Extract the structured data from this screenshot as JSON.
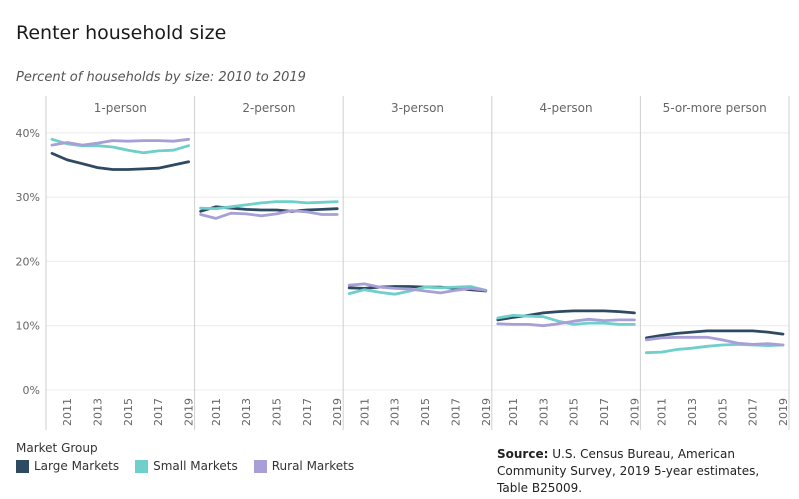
{
  "title": "Renter household size",
  "subtitle": "Percent of households by size: 2010 to 2019",
  "legend": {
    "title": "Market Group",
    "items": [
      {
        "label": "Large Markets",
        "color": "#2e4a62"
      },
      {
        "label": "Small Markets",
        "color": "#6fcfca"
      },
      {
        "label": "Rural Markets",
        "color": "#a89fd6"
      }
    ]
  },
  "source": {
    "label": "Source:",
    "text": "U.S. Census Bureau, American Community Survey, 2019 5-year estimates, Table B25009."
  },
  "chart_data": {
    "type": "line",
    "ylim": [
      0,
      42
    ],
    "y_ticks": [
      0,
      10,
      20,
      30,
      40
    ],
    "y_tick_labels": [
      "0%",
      "10%",
      "20%",
      "30%",
      "40%"
    ],
    "x": [
      2010,
      2011,
      2012,
      2013,
      2014,
      2015,
      2016,
      2017,
      2018,
      2019
    ],
    "x_tick_labels": [
      "2011",
      "2013",
      "2015",
      "2017",
      "2019"
    ],
    "x_tick_values": [
      2011,
      2013,
      2015,
      2017,
      2019
    ],
    "grid": true,
    "panels": [
      {
        "name": "1-person",
        "series": [
          {
            "name": "Large Markets",
            "values": [
              36.8,
              35.8,
              35.2,
              34.6,
              34.3,
              34.3,
              34.4,
              34.5,
              35.0,
              35.5
            ]
          },
          {
            "name": "Small Markets",
            "values": [
              39.0,
              38.3,
              38.0,
              38.0,
              37.8,
              37.3,
              36.9,
              37.2,
              37.3,
              38.0
            ]
          },
          {
            "name": "Rural Markets",
            "values": [
              38.1,
              38.5,
              38.1,
              38.4,
              38.8,
              38.7,
              38.8,
              38.8,
              38.7,
              39.0
            ]
          }
        ]
      },
      {
        "name": "2-person",
        "series": [
          {
            "name": "Large Markets",
            "values": [
              27.8,
              28.5,
              28.3,
              28.1,
              28.0,
              28.0,
              27.8,
              28.0,
              28.1,
              28.2
            ]
          },
          {
            "name": "Small Markets",
            "values": [
              28.3,
              28.2,
              28.5,
              28.8,
              29.1,
              29.3,
              29.3,
              29.1,
              29.2,
              29.3
            ]
          },
          {
            "name": "Rural Markets",
            "values": [
              27.3,
              26.7,
              27.5,
              27.4,
              27.1,
              27.4,
              27.9,
              27.7,
              27.3,
              27.3
            ]
          }
        ]
      },
      {
        "name": "3-person",
        "series": [
          {
            "name": "Large Markets",
            "values": [
              15.9,
              15.8,
              16.0,
              16.1,
              16.1,
              16.0,
              16.0,
              15.8,
              15.6,
              15.4
            ]
          },
          {
            "name": "Small Markets",
            "values": [
              15.0,
              15.6,
              15.2,
              14.9,
              15.4,
              16.0,
              15.9,
              16.0,
              16.1,
              15.5
            ]
          },
          {
            "name": "Rural Markets",
            "values": [
              16.3,
              16.5,
              16.0,
              15.8,
              15.7,
              15.4,
              15.1,
              15.5,
              15.8,
              15.5
            ]
          }
        ]
      },
      {
        "name": "4-person",
        "series": [
          {
            "name": "Large Markets",
            "values": [
              10.9,
              11.3,
              11.6,
              12.0,
              12.2,
              12.3,
              12.3,
              12.3,
              12.2,
              12.0
            ]
          },
          {
            "name": "Small Markets",
            "values": [
              11.2,
              11.6,
              11.5,
              11.4,
              10.7,
              10.2,
              10.4,
              10.4,
              10.2,
              10.2
            ]
          },
          {
            "name": "Rural Markets",
            "values": [
              10.3,
              10.2,
              10.2,
              10.0,
              10.3,
              10.7,
              11.0,
              10.8,
              10.9,
              10.9
            ]
          }
        ]
      },
      {
        "name": "5-or-more person",
        "series": [
          {
            "name": "Large Markets",
            "values": [
              8.1,
              8.5,
              8.8,
              9.0,
              9.2,
              9.2,
              9.2,
              9.2,
              9.0,
              8.7
            ]
          },
          {
            "name": "Small Markets",
            "values": [
              5.8,
              5.9,
              6.3,
              6.5,
              6.8,
              7.0,
              7.1,
              7.0,
              6.9,
              7.0
            ]
          },
          {
            "name": "Rural Markets",
            "values": [
              7.8,
              8.1,
              8.2,
              8.2,
              8.2,
              7.8,
              7.3,
              7.1,
              7.2,
              7.0
            ]
          }
        ]
      }
    ]
  }
}
